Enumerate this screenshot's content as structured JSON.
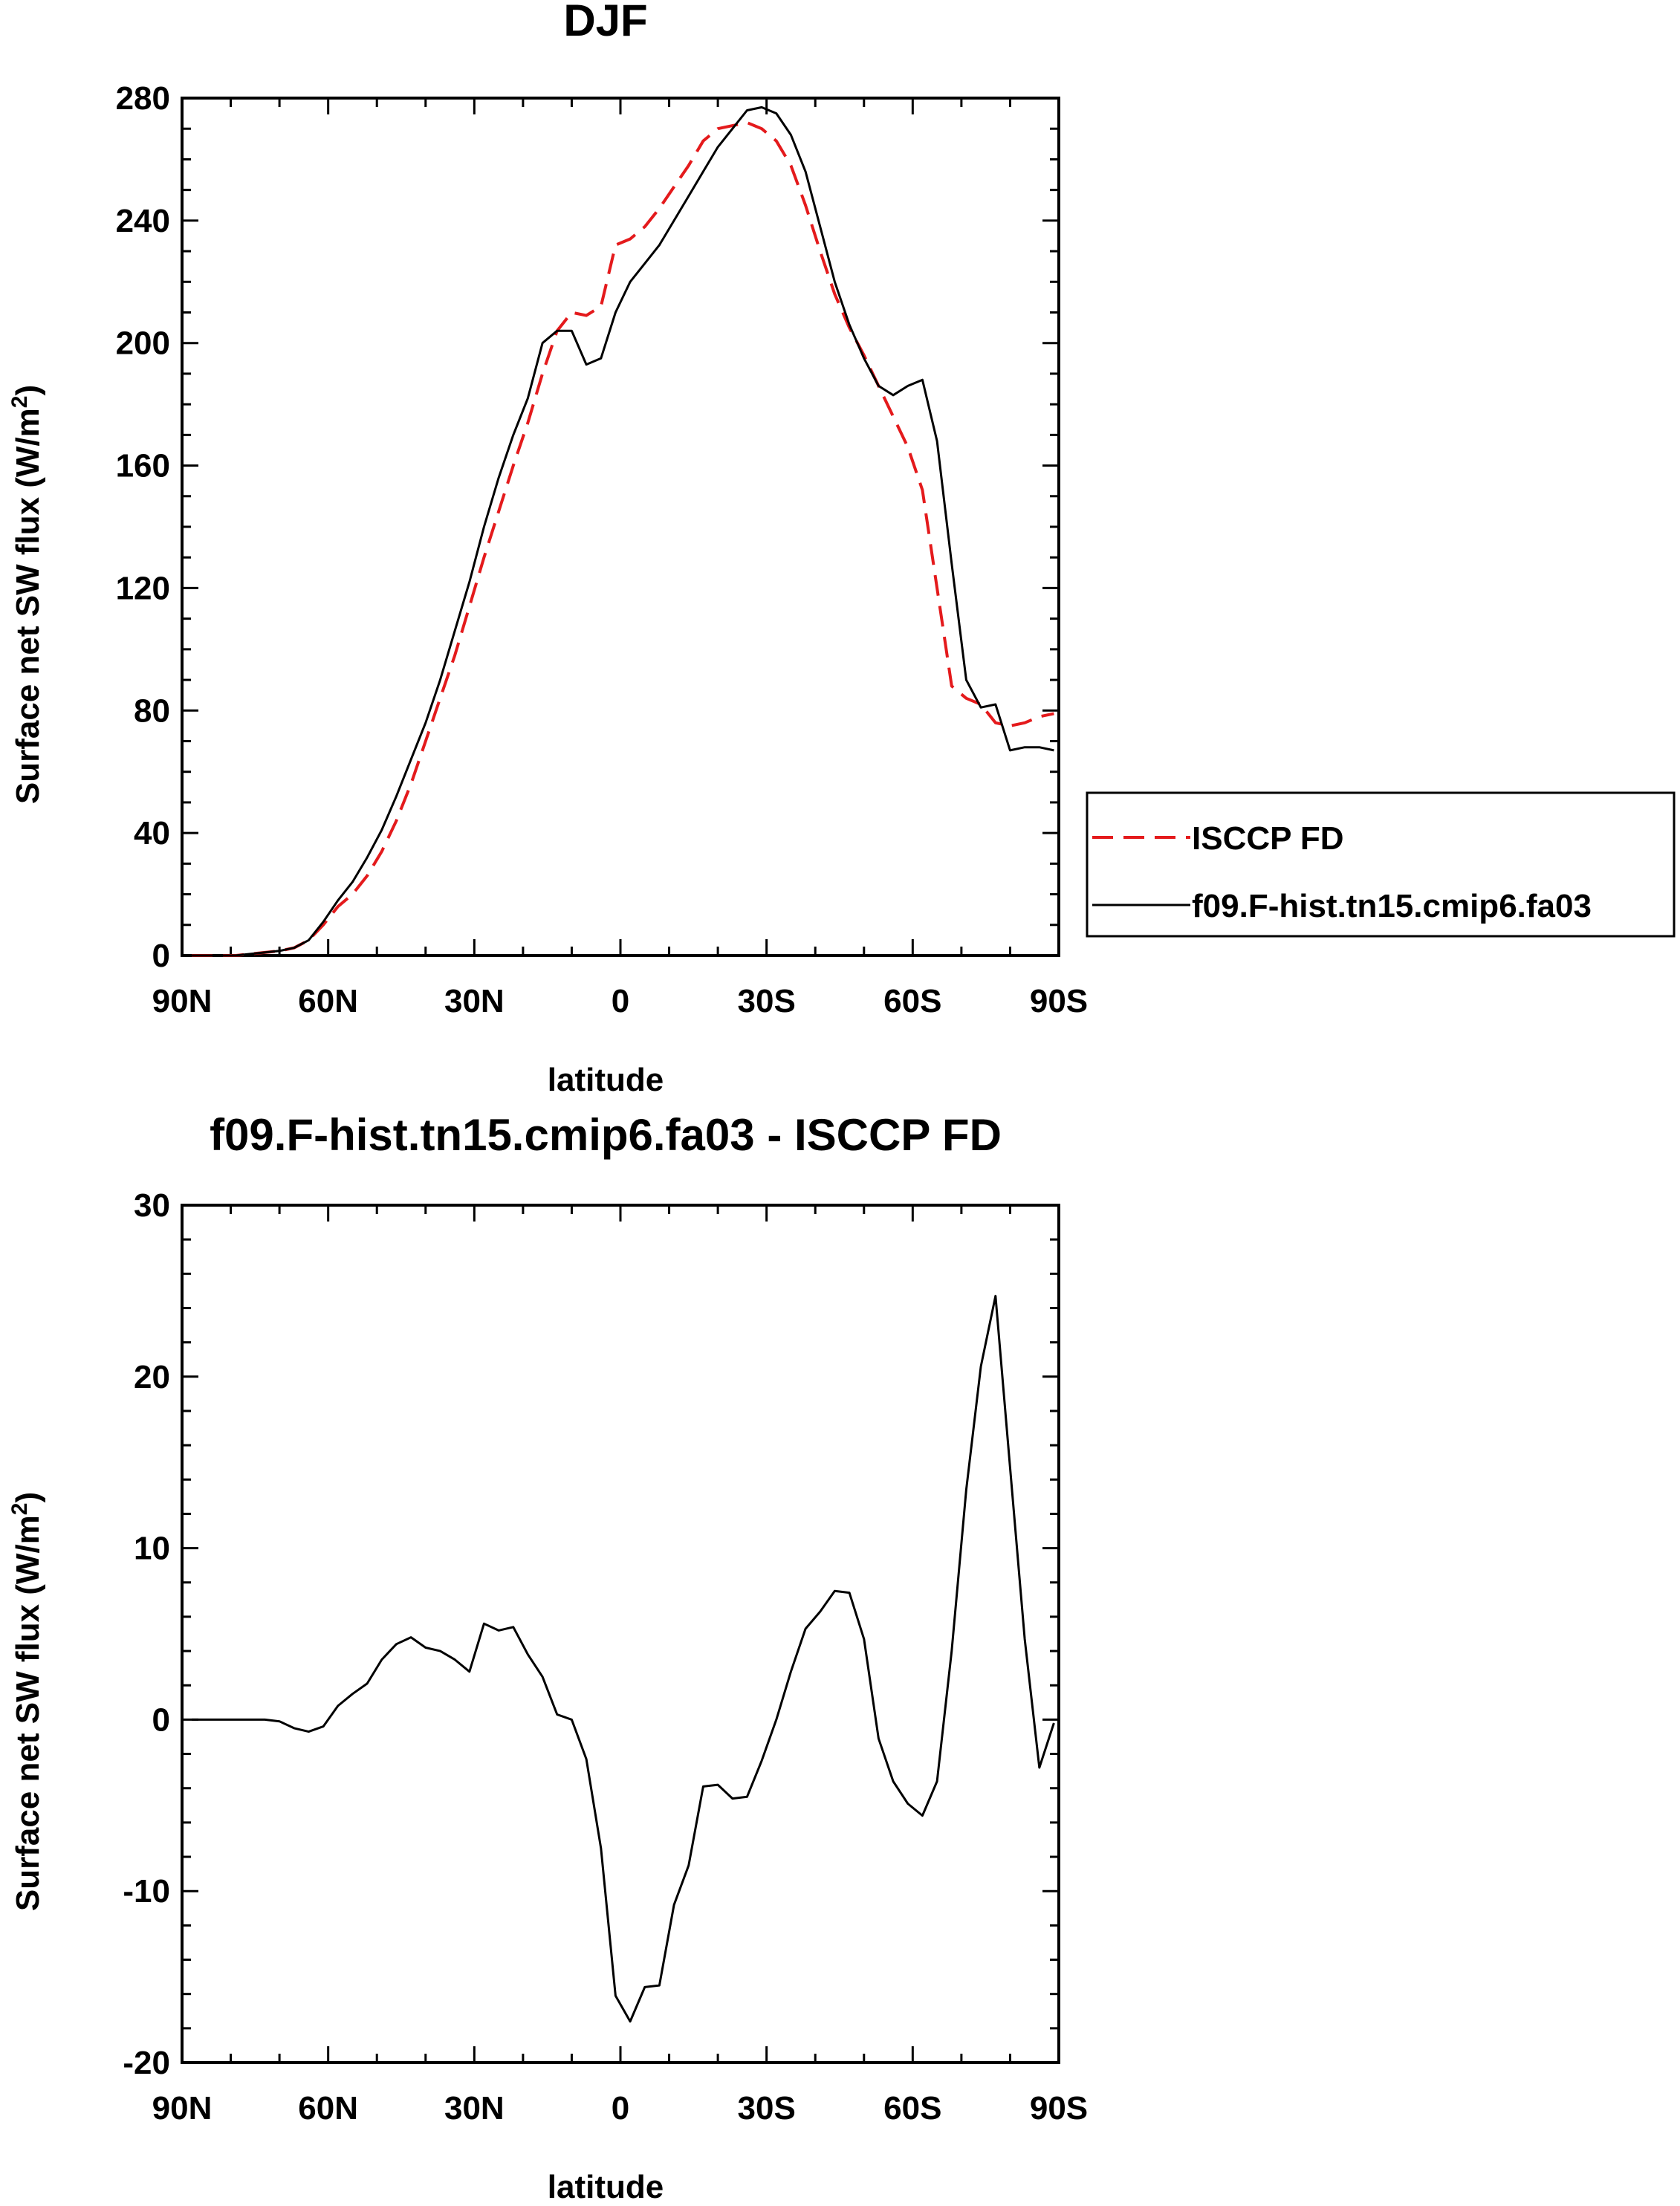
{
  "chart_data": [
    {
      "type": "line",
      "title": "DJF",
      "xlabel": "latitude",
      "ylabel": "Surface net SW flux (W/m",
      "ylabel_superscript": "2",
      "ylabel_suffix": ")",
      "xlim": [
        -90,
        90
      ],
      "ylim": [
        0,
        280
      ],
      "x_ticks": [
        -90,
        -60,
        -30,
        0,
        30,
        60,
        90
      ],
      "x_tick_labels": [
        "90N",
        "60N",
        "30N",
        "0",
        "30S",
        "60S",
        "90S"
      ],
      "y_ticks": [
        0,
        40,
        80,
        120,
        160,
        200,
        240,
        280
      ],
      "y_tick_labels": [
        "0",
        "40",
        "80",
        "120",
        "160",
        "200",
        "240",
        "280"
      ],
      "legend_position": "right",
      "grid": false,
      "series": [
        {
          "name": "ISCCP FD",
          "color": "#e41a1c",
          "dash": "dashed",
          "x": [
            -88,
            -85,
            -82,
            -79,
            -76,
            -73,
            -70,
            -67,
            -64,
            -61,
            -58,
            -55,
            -52,
            -49,
            -46,
            -43,
            -40,
            -37,
            -34,
            -31,
            -28,
            -25,
            -22,
            -19,
            -16,
            -13,
            -10,
            -7,
            -4,
            -1,
            2,
            5,
            8,
            11,
            14,
            17,
            20,
            23,
            26,
            29,
            32,
            35,
            38,
            41,
            44,
            47,
            50,
            53,
            56,
            59,
            62,
            65,
            68,
            71,
            74,
            77,
            80,
            83,
            86,
            89
          ],
          "y": [
            0,
            0,
            0,
            0,
            0.5,
            1,
            1.5,
            2.5,
            5,
            10,
            16,
            20,
            26,
            34,
            44,
            56,
            70,
            84,
            98,
            114,
            130,
            145,
            160,
            174,
            190,
            204,
            210,
            209,
            212,
            232,
            234,
            238,
            244,
            251,
            258,
            266,
            270,
            271,
            272,
            270,
            266,
            258,
            245,
            230,
            216,
            205,
            196,
            186,
            176,
            166,
            152,
            120,
            88,
            84,
            82,
            76,
            75,
            76,
            78,
            79
          ]
        },
        {
          "name": "f09.F-hist.tn15.cmip6.fa03",
          "color": "#000000",
          "dash": "solid",
          "x": [
            -88,
            -85,
            -82,
            -79,
            -76,
            -73,
            -70,
            -67,
            -64,
            -61,
            -58,
            -55,
            -52,
            -49,
            -46,
            -43,
            -40,
            -37,
            -34,
            -31,
            -28,
            -25,
            -22,
            -19,
            -16,
            -13,
            -10,
            -7,
            -4,
            -1,
            2,
            5,
            8,
            11,
            14,
            17,
            20,
            23,
            26,
            29,
            32,
            35,
            38,
            41,
            44,
            47,
            50,
            53,
            56,
            59,
            62,
            65,
            68,
            71,
            74,
            77,
            80,
            83,
            86,
            89
          ],
          "y": [
            0,
            0,
            0,
            0,
            0.5,
            1,
            1.5,
            2.5,
            5,
            11,
            18,
            24,
            32,
            41,
            52,
            64,
            76,
            90,
            106,
            122,
            140,
            156,
            170,
            182,
            200,
            204,
            204,
            193,
            195,
            210,
            220,
            226,
            232,
            240,
            248,
            256,
            264,
            270,
            276,
            277,
            275,
            268,
            256,
            238,
            220,
            206,
            195,
            186,
            183,
            186,
            188,
            168,
            128,
            90,
            81,
            82,
            67,
            68,
            68,
            67
          ]
        }
      ]
    },
    {
      "type": "line",
      "title": "f09.F-hist.tn15.cmip6.fa03 - ISCCP FD",
      "xlabel": "latitude",
      "ylabel": "Surface net SW flux (W/m",
      "ylabel_superscript": "2",
      "ylabel_suffix": ")",
      "xlim": [
        -90,
        90
      ],
      "ylim": [
        -20,
        30
      ],
      "x_ticks": [
        -90,
        -60,
        -30,
        0,
        30,
        60,
        90
      ],
      "x_tick_labels": [
        "90N",
        "60N",
        "30N",
        "0",
        "30S",
        "60S",
        "90S"
      ],
      "y_ticks": [
        -20,
        -10,
        0,
        10,
        20,
        30
      ],
      "y_tick_labels": [
        "-20",
        "-10",
        "0",
        "10",
        "20",
        "30"
      ],
      "grid": false,
      "series": [
        {
          "color": "#000000",
          "dash": "solid",
          "x": [
            -88,
            -85,
            -82,
            -79,
            -76,
            -73,
            -70,
            -67,
            -64,
            -61,
            -58,
            -55,
            -52,
            -49,
            -46,
            -43,
            -40,
            -37,
            -34,
            -31,
            -28,
            -25,
            -22,
            -19,
            -16,
            -13,
            -10,
            -7,
            -4,
            -1,
            2,
            5,
            8,
            11,
            14,
            17,
            20,
            23,
            26,
            29,
            32,
            35,
            38,
            41,
            44,
            47,
            50,
            53,
            56,
            59,
            62,
            65,
            68,
            71,
            74,
            77,
            80,
            83,
            86,
            89
          ],
          "y": [
            0,
            0,
            0,
            0,
            0,
            0,
            -0.1,
            -0.5,
            -0.7,
            -0.4,
            0.8,
            1.5,
            2.1,
            3.5,
            4.4,
            4.8,
            4.2,
            4.0,
            3.5,
            2.8,
            5.6,
            5.2,
            5.4,
            3.8,
            2.5,
            0.3,
            0.0,
            -2.3,
            -7.5,
            -16.1,
            -17.6,
            -15.6,
            -15.5,
            -10.8,
            -8.5,
            -3.9,
            -3.8,
            -4.6,
            -4.5,
            -2.4,
            0.0,
            2.8,
            5.3,
            6.3,
            7.5,
            7.4,
            4.7,
            -1.1,
            -3.6,
            -4.9,
            -5.6,
            -3.6,
            4.0,
            13.4,
            20.6,
            24.7,
            14.7,
            4.7,
            -2.8,
            -0.2
          ]
        }
      ]
    }
  ]
}
